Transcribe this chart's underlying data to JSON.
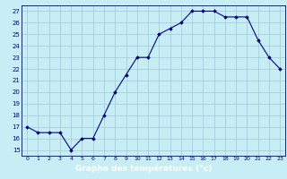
{
  "x": [
    0,
    1,
    2,
    3,
    4,
    5,
    6,
    7,
    8,
    9,
    10,
    11,
    12,
    13,
    14,
    15,
    16,
    17,
    18,
    19,
    20,
    21,
    22,
    23
  ],
  "y": [
    17,
    16.5,
    16.5,
    16.5,
    15,
    16,
    16,
    18,
    20,
    21.5,
    23,
    23,
    25,
    25.5,
    26,
    27,
    27,
    27,
    26.5,
    26.5,
    26.5,
    24.5,
    23,
    22
  ],
  "xlim": [
    -0.5,
    23.5
  ],
  "ylim": [
    14.5,
    27.5
  ],
  "yticks": [
    15,
    16,
    17,
    18,
    19,
    20,
    21,
    22,
    23,
    24,
    25,
    26,
    27
  ],
  "xticks": [
    0,
    1,
    2,
    3,
    4,
    5,
    6,
    7,
    8,
    9,
    10,
    11,
    12,
    13,
    14,
    15,
    16,
    17,
    18,
    19,
    20,
    21,
    22,
    23
  ],
  "xlabel": "Graphe des températures (°c)",
  "line_color": "#00008b",
  "marker": "D",
  "marker_size": 1.8,
  "line_width": 0.8,
  "bg_color": "#c8eef5",
  "grid_color": "#a0c8d8",
  "label_color": "#00008b",
  "xlabel_color": "#ffffff",
  "xlabel_bg": "#00008b",
  "fig_width": 3.2,
  "fig_height": 2.0,
  "dpi": 100
}
